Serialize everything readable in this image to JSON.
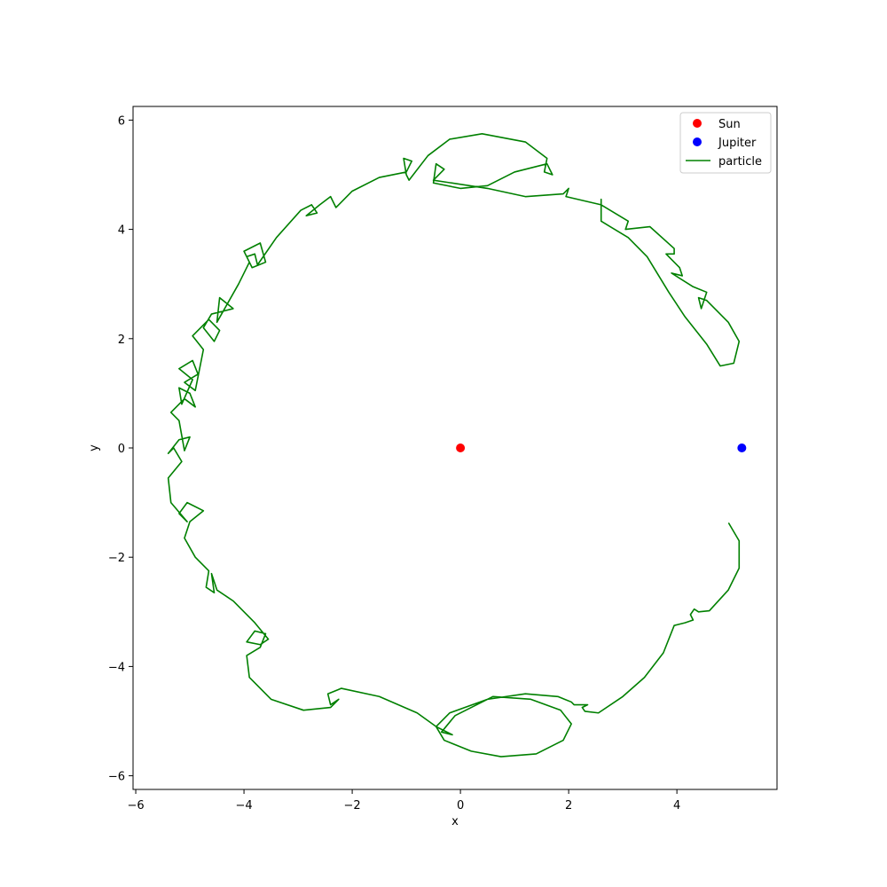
{
  "chart_data": {
    "type": "scatter",
    "title": "",
    "xlabel": "x",
    "ylabel": "y",
    "xlim": [
      -6.05,
      5.85
    ],
    "ylim": [
      -6.25,
      6.25
    ],
    "x_ticks": [
      -6,
      -4,
      -2,
      0,
      2,
      4
    ],
    "y_ticks": [
      -6,
      -4,
      -2,
      0,
      2,
      4,
      6
    ],
    "x_tick_labels": [
      "−6",
      "−4",
      "−2",
      "0",
      "2",
      "4"
    ],
    "y_tick_labels": [
      "−6",
      "−4",
      "−2",
      "0",
      "2",
      "4",
      "6"
    ],
    "grid": false,
    "legend_position": "top-right",
    "series": [
      {
        "name": "Sun",
        "kind": "point",
        "color": "#ff0000",
        "points": [
          [
            0,
            0
          ]
        ]
      },
      {
        "name": "Jupiter",
        "kind": "point",
        "color": "#0000ff",
        "points": [
          [
            5.2,
            0
          ]
        ]
      },
      {
        "name": "particle",
        "kind": "line",
        "color": "#008000",
        "notes_start_end": "curve starts near (4.96,-1.38) and ends near (2.6,4.55)",
        "points": [
          [
            4.96,
            -1.38
          ],
          [
            5.15,
            -1.7
          ],
          [
            5.15,
            -2.2
          ],
          [
            4.95,
            -2.6
          ],
          [
            4.6,
            -2.98
          ],
          [
            4.4,
            -3.0
          ],
          [
            4.32,
            -2.95
          ],
          [
            4.25,
            -3.05
          ],
          [
            4.3,
            -3.15
          ],
          [
            4.15,
            -3.2
          ],
          [
            3.95,
            -3.25
          ],
          [
            3.75,
            -3.75
          ],
          [
            3.4,
            -4.2
          ],
          [
            3.0,
            -4.55
          ],
          [
            2.55,
            -4.85
          ],
          [
            2.3,
            -4.82
          ],
          [
            2.25,
            -4.75
          ],
          [
            2.35,
            -4.7
          ],
          [
            2.1,
            -4.7
          ],
          [
            2.05,
            -4.65
          ],
          [
            1.8,
            -4.55
          ],
          [
            1.2,
            -4.5
          ],
          [
            0.5,
            -4.6
          ],
          [
            -0.2,
            -4.85
          ],
          [
            -0.45,
            -5.1
          ],
          [
            -0.3,
            -5.35
          ],
          [
            0.2,
            -5.55
          ],
          [
            0.75,
            -5.65
          ],
          [
            1.4,
            -5.6
          ],
          [
            1.9,
            -5.35
          ],
          [
            2.05,
            -5.05
          ],
          [
            1.85,
            -4.8
          ],
          [
            1.3,
            -4.6
          ],
          [
            0.6,
            -4.55
          ],
          [
            -0.1,
            -4.9
          ],
          [
            -0.35,
            -5.2
          ],
          [
            -0.15,
            -5.25
          ],
          [
            -0.45,
            -5.1
          ],
          [
            -0.8,
            -4.85
          ],
          [
            -1.5,
            -4.55
          ],
          [
            -2.2,
            -4.4
          ],
          [
            -2.45,
            -4.5
          ],
          [
            -2.4,
            -4.7
          ],
          [
            -2.25,
            -4.6
          ],
          [
            -2.4,
            -4.75
          ],
          [
            -2.9,
            -4.8
          ],
          [
            -3.5,
            -4.6
          ],
          [
            -3.9,
            -4.2
          ],
          [
            -3.95,
            -3.8
          ],
          [
            -3.7,
            -3.65
          ],
          [
            -3.6,
            -3.4
          ],
          [
            -3.8,
            -3.35
          ],
          [
            -3.95,
            -3.55
          ],
          [
            -3.7,
            -3.6
          ],
          [
            -3.55,
            -3.5
          ],
          [
            -3.8,
            -3.2
          ],
          [
            -4.2,
            -2.8
          ],
          [
            -4.5,
            -2.6
          ],
          [
            -4.6,
            -2.3
          ],
          [
            -4.55,
            -2.65
          ],
          [
            -4.7,
            -2.55
          ],
          [
            -4.65,
            -2.25
          ],
          [
            -4.9,
            -2.0
          ],
          [
            -5.1,
            -1.65
          ],
          [
            -5.0,
            -1.35
          ],
          [
            -4.75,
            -1.15
          ],
          [
            -5.05,
            -1.0
          ],
          [
            -5.2,
            -1.2
          ],
          [
            -5.05,
            -1.35
          ],
          [
            -5.35,
            -1.0
          ],
          [
            -5.4,
            -0.55
          ],
          [
            -5.15,
            -0.25
          ],
          [
            -5.3,
            0.0
          ],
          [
            -5.4,
            -0.1
          ],
          [
            -5.2,
            0.15
          ],
          [
            -5.0,
            0.2
          ],
          [
            -5.1,
            -0.05
          ],
          [
            -5.2,
            0.5
          ],
          [
            -5.35,
            0.65
          ],
          [
            -5.1,
            0.9
          ],
          [
            -4.9,
            0.75
          ],
          [
            -5.0,
            1.0
          ],
          [
            -5.2,
            1.1
          ],
          [
            -5.15,
            0.8
          ],
          [
            -4.95,
            1.25
          ],
          [
            -5.2,
            1.45
          ],
          [
            -4.95,
            1.6
          ],
          [
            -4.85,
            1.35
          ],
          [
            -5.1,
            1.2
          ],
          [
            -4.9,
            1.05
          ],
          [
            -4.75,
            1.8
          ],
          [
            -4.95,
            2.05
          ],
          [
            -4.65,
            2.35
          ],
          [
            -4.45,
            2.15
          ],
          [
            -4.55,
            1.95
          ],
          [
            -4.75,
            2.2
          ],
          [
            -4.6,
            2.45
          ],
          [
            -4.2,
            2.55
          ],
          [
            -4.45,
            2.75
          ],
          [
            -4.5,
            2.3
          ],
          [
            -4.1,
            3.0
          ],
          [
            -3.9,
            3.4
          ],
          [
            -4.0,
            3.6
          ],
          [
            -3.7,
            3.75
          ],
          [
            -3.6,
            3.4
          ],
          [
            -3.85,
            3.3
          ],
          [
            -3.95,
            3.5
          ],
          [
            -3.8,
            3.55
          ],
          [
            -3.75,
            3.35
          ],
          [
            -3.4,
            3.85
          ],
          [
            -2.95,
            4.35
          ],
          [
            -2.75,
            4.45
          ],
          [
            -2.65,
            4.3
          ],
          [
            -2.85,
            4.25
          ],
          [
            -2.6,
            4.45
          ],
          [
            -2.4,
            4.6
          ],
          [
            -2.3,
            4.4
          ],
          [
            -2.0,
            4.7
          ],
          [
            -1.5,
            4.95
          ],
          [
            -1.0,
            5.05
          ],
          [
            -0.9,
            5.25
          ],
          [
            -1.05,
            5.3
          ],
          [
            -1.0,
            5.0
          ],
          [
            -0.95,
            4.9
          ],
          [
            -0.6,
            5.35
          ],
          [
            -0.2,
            5.65
          ],
          [
            0.4,
            5.75
          ],
          [
            1.2,
            5.6
          ],
          [
            1.6,
            5.3
          ],
          [
            1.55,
            5.05
          ],
          [
            1.7,
            5.0
          ],
          [
            1.6,
            5.2
          ],
          [
            1.0,
            5.05
          ],
          [
            0.5,
            4.8
          ],
          [
            0.0,
            4.75
          ],
          [
            -0.5,
            4.85
          ],
          [
            -0.45,
            5.2
          ],
          [
            -0.3,
            5.1
          ],
          [
            -0.5,
            4.9
          ],
          [
            0.5,
            4.75
          ],
          [
            1.2,
            4.6
          ],
          [
            1.9,
            4.65
          ],
          [
            2.0,
            4.75
          ],
          [
            1.95,
            4.6
          ],
          [
            2.6,
            4.45
          ],
          [
            3.1,
            4.15
          ],
          [
            3.05,
            4.0
          ],
          [
            3.5,
            4.05
          ],
          [
            3.95,
            3.65
          ],
          [
            3.95,
            3.55
          ],
          [
            3.8,
            3.55
          ],
          [
            4.05,
            3.3
          ],
          [
            4.1,
            3.15
          ],
          [
            3.9,
            3.2
          ],
          [
            4.3,
            2.95
          ],
          [
            4.55,
            2.85
          ],
          [
            4.45,
            2.55
          ],
          [
            4.4,
            2.75
          ],
          [
            4.55,
            2.7
          ],
          [
            4.95,
            2.3
          ],
          [
            5.15,
            1.95
          ],
          [
            5.05,
            1.55
          ],
          [
            4.8,
            1.5
          ],
          [
            4.55,
            1.9
          ],
          [
            4.15,
            2.4
          ],
          [
            3.85,
            2.85
          ],
          [
            3.45,
            3.5
          ],
          [
            3.1,
            3.85
          ],
          [
            2.6,
            4.15
          ],
          [
            2.6,
            4.4
          ],
          [
            2.6,
            4.55
          ]
        ]
      }
    ]
  }
}
